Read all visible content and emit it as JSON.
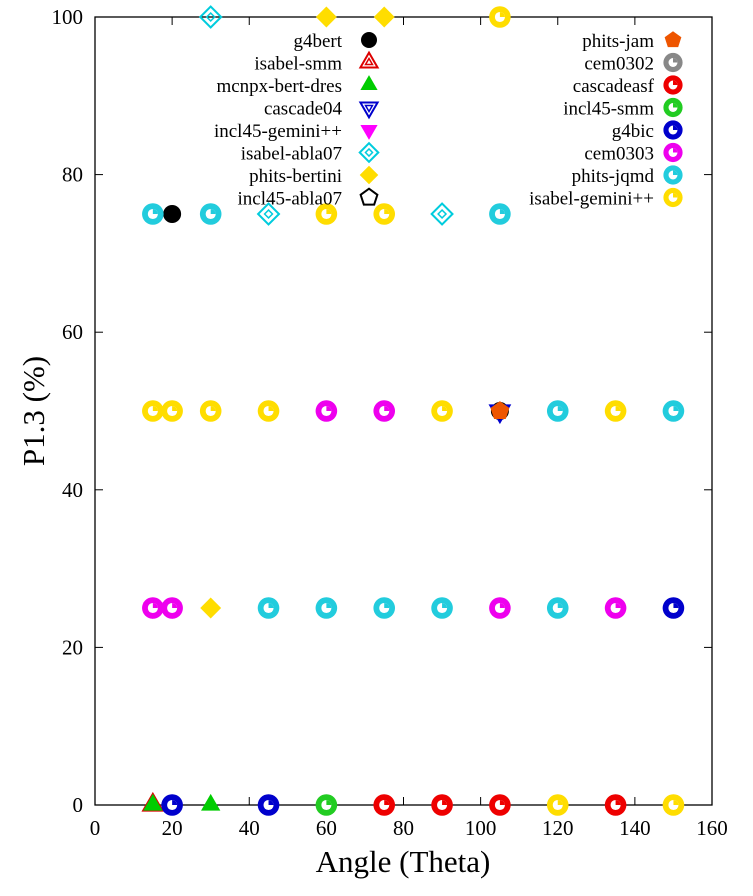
{
  "chart_data": {
    "type": "scatter",
    "title": "",
    "xlabel": "Angle (Theta)",
    "ylabel": "P1.3 (%)",
    "xlim": [
      0,
      160
    ],
    "ylim": [
      0,
      100
    ],
    "xticks": [
      0,
      20,
      40,
      60,
      80,
      100,
      120,
      140,
      160
    ],
    "yticks": [
      0,
      20,
      40,
      60,
      80,
      100
    ],
    "grid": false,
    "legend": "top, two columns",
    "series": [
      {
        "name": "g4bert",
        "marker": "circle",
        "color": "#000000",
        "points": [
          [
            20,
            0
          ],
          [
            45,
            0
          ],
          [
            60,
            0
          ],
          [
            75,
            0
          ],
          [
            90,
            0
          ],
          [
            105,
            0
          ],
          [
            120,
            0
          ],
          [
            135,
            0
          ],
          [
            150,
            0
          ],
          [
            15,
            25
          ],
          [
            20,
            25
          ],
          [
            45,
            25
          ],
          [
            60,
            25
          ],
          [
            75,
            25
          ],
          [
            90,
            25
          ],
          [
            105,
            25
          ],
          [
            120,
            25
          ],
          [
            135,
            25
          ],
          [
            150,
            25
          ],
          [
            15,
            50
          ],
          [
            20,
            50
          ],
          [
            30,
            50
          ],
          [
            45,
            50
          ],
          [
            60,
            50
          ],
          [
            75,
            50
          ],
          [
            90,
            50
          ],
          [
            105,
            50
          ],
          [
            120,
            50
          ],
          [
            135,
            50
          ],
          [
            150,
            50
          ],
          [
            15,
            75
          ],
          [
            20,
            75
          ],
          [
            30,
            75
          ],
          [
            60,
            75
          ],
          [
            105,
            75
          ]
        ]
      },
      {
        "name": "isabel-smm",
        "marker": "triangle",
        "color": "#dd0000",
        "points": [
          [
            15,
            0
          ]
        ]
      },
      {
        "name": "mcnpx-bert-dres",
        "marker": "triangle-filled",
        "color": "#00cc00",
        "points": [
          [
            15,
            0
          ],
          [
            30,
            0
          ]
        ]
      },
      {
        "name": "cascade04",
        "marker": "triangle-down",
        "color": "#0000cc",
        "points": [
          [
            105,
            50
          ]
        ]
      },
      {
        "name": "incl45-gemini++",
        "marker": "triangle-down-filled",
        "color": "#ff00ff",
        "points": [
          [
            15,
            25
          ],
          [
            20,
            25
          ]
        ]
      },
      {
        "name": "isabel-abla07",
        "marker": "diamond",
        "color": "#00ccdd",
        "points": [
          [
            30,
            100
          ],
          [
            45,
            75
          ],
          [
            90,
            75
          ]
        ]
      },
      {
        "name": "phits-bertini",
        "marker": "diamond-filled",
        "color": "#ffdd00",
        "points": [
          [
            60,
            100
          ],
          [
            75,
            100
          ],
          [
            30,
            25
          ]
        ]
      },
      {
        "name": "incl45-abla07",
        "marker": "pentagon",
        "color": "#000000",
        "points": []
      },
      {
        "name": "phits-jam",
        "marker": "pentagon-filled",
        "color": "#ee5500",
        "points": [
          [
            105,
            50
          ]
        ]
      },
      {
        "name": "cem0302",
        "marker": "ring",
        "color": "#888888",
        "points": []
      },
      {
        "name": "cascadeasf",
        "marker": "ring",
        "color": "#ee0000",
        "points": [
          [
            75,
            0
          ],
          [
            90,
            0
          ],
          [
            105,
            0
          ],
          [
            135,
            0
          ]
        ]
      },
      {
        "name": "incl45-smm",
        "marker": "ring",
        "color": "#22cc22",
        "points": [
          [
            60,
            0
          ]
        ]
      },
      {
        "name": "g4bic",
        "marker": "ring",
        "color": "#0000cc",
        "points": [
          [
            20,
            0
          ],
          [
            45,
            0
          ],
          [
            150,
            25
          ]
        ]
      },
      {
        "name": "cem0303",
        "marker": "ring",
        "color": "#ee00ee",
        "points": [
          [
            15,
            25
          ],
          [
            20,
            25
          ],
          [
            105,
            25
          ],
          [
            135,
            25
          ],
          [
            60,
            50
          ],
          [
            75,
            50
          ]
        ]
      },
      {
        "name": "phits-jqmd",
        "marker": "ring",
        "color": "#22ccdd",
        "points": [
          [
            45,
            25
          ],
          [
            60,
            25
          ],
          [
            75,
            25
          ],
          [
            90,
            25
          ],
          [
            120,
            25
          ],
          [
            120,
            50
          ],
          [
            150,
            50
          ],
          [
            15,
            75
          ],
          [
            30,
            75
          ],
          [
            105,
            75
          ]
        ]
      },
      {
        "name": "isabel-gemini++",
        "marker": "ring",
        "color": "#ffdd00",
        "points": [
          [
            120,
            0
          ],
          [
            150,
            0
          ],
          [
            15,
            50
          ],
          [
            20,
            50
          ],
          [
            30,
            50
          ],
          [
            45,
            50
          ],
          [
            90,
            50
          ],
          [
            135,
            50
          ],
          [
            60,
            75
          ],
          [
            75,
            75
          ],
          [
            105,
            100
          ]
        ]
      }
    ]
  }
}
